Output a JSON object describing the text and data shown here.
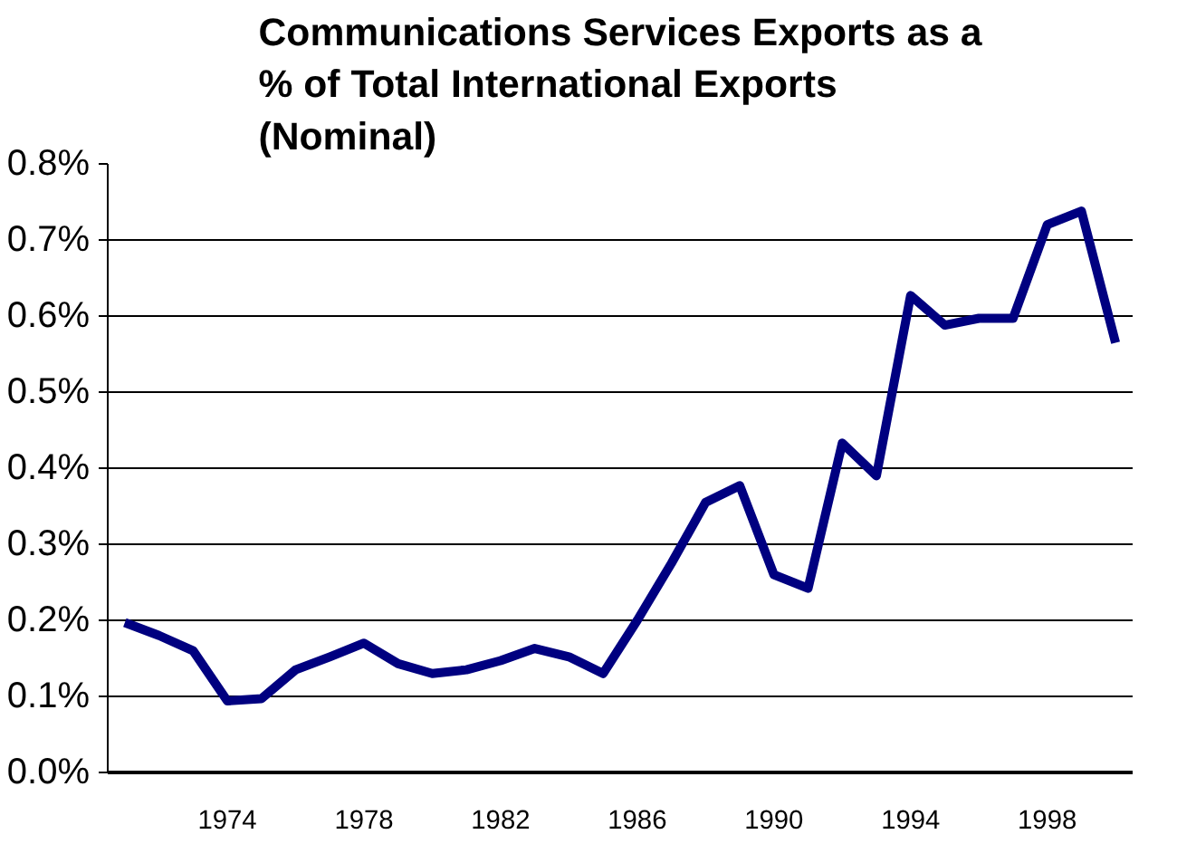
{
  "chart_data": {
    "type": "line",
    "title": "Communications Services Exports as a\n% of Total International Exports\n(Nominal)",
    "categories": [
      null,
      null,
      null,
      "1974",
      null,
      null,
      null,
      "1978",
      null,
      null,
      null,
      "1982",
      null,
      null,
      null,
      "1986",
      null,
      null,
      null,
      "1990",
      null,
      null,
      null,
      "1994",
      null,
      null,
      null,
      "1998",
      null,
      null
    ],
    "series": [
      {
        "color": "#000080",
        "values": [
          0.197,
          0.18,
          0.16,
          0.094,
          0.097,
          0.135,
          0.152,
          0.17,
          0.143,
          0.13,
          0.135,
          0.147,
          0.163,
          0.152,
          0.13,
          0.2,
          0.275,
          0.355,
          0.377,
          0.26,
          0.242,
          0.433,
          0.39,
          0.627,
          0.588,
          0.597,
          0.597,
          0.72,
          0.738,
          0.565
        ]
      }
    ],
    "ylim": [
      0,
      0.8
    ],
    "yticks": [
      {
        "value": 0,
        "label": "0.0%"
      },
      {
        "value": 0.1,
        "label": "0.1%"
      },
      {
        "value": 0.2,
        "label": "0.2%"
      },
      {
        "value": 0.3,
        "label": "0.3%"
      },
      {
        "value": 0.4,
        "label": "0.4%"
      },
      {
        "value": 0.5,
        "label": "0.5%"
      },
      {
        "value": 0.6,
        "label": "0.6%"
      },
      {
        "value": 0.7,
        "label": "0.7%"
      },
      {
        "value": 0.8,
        "label": "0.8%"
      }
    ],
    "grid": "y",
    "marker": "none",
    "line_style": "solid"
  }
}
